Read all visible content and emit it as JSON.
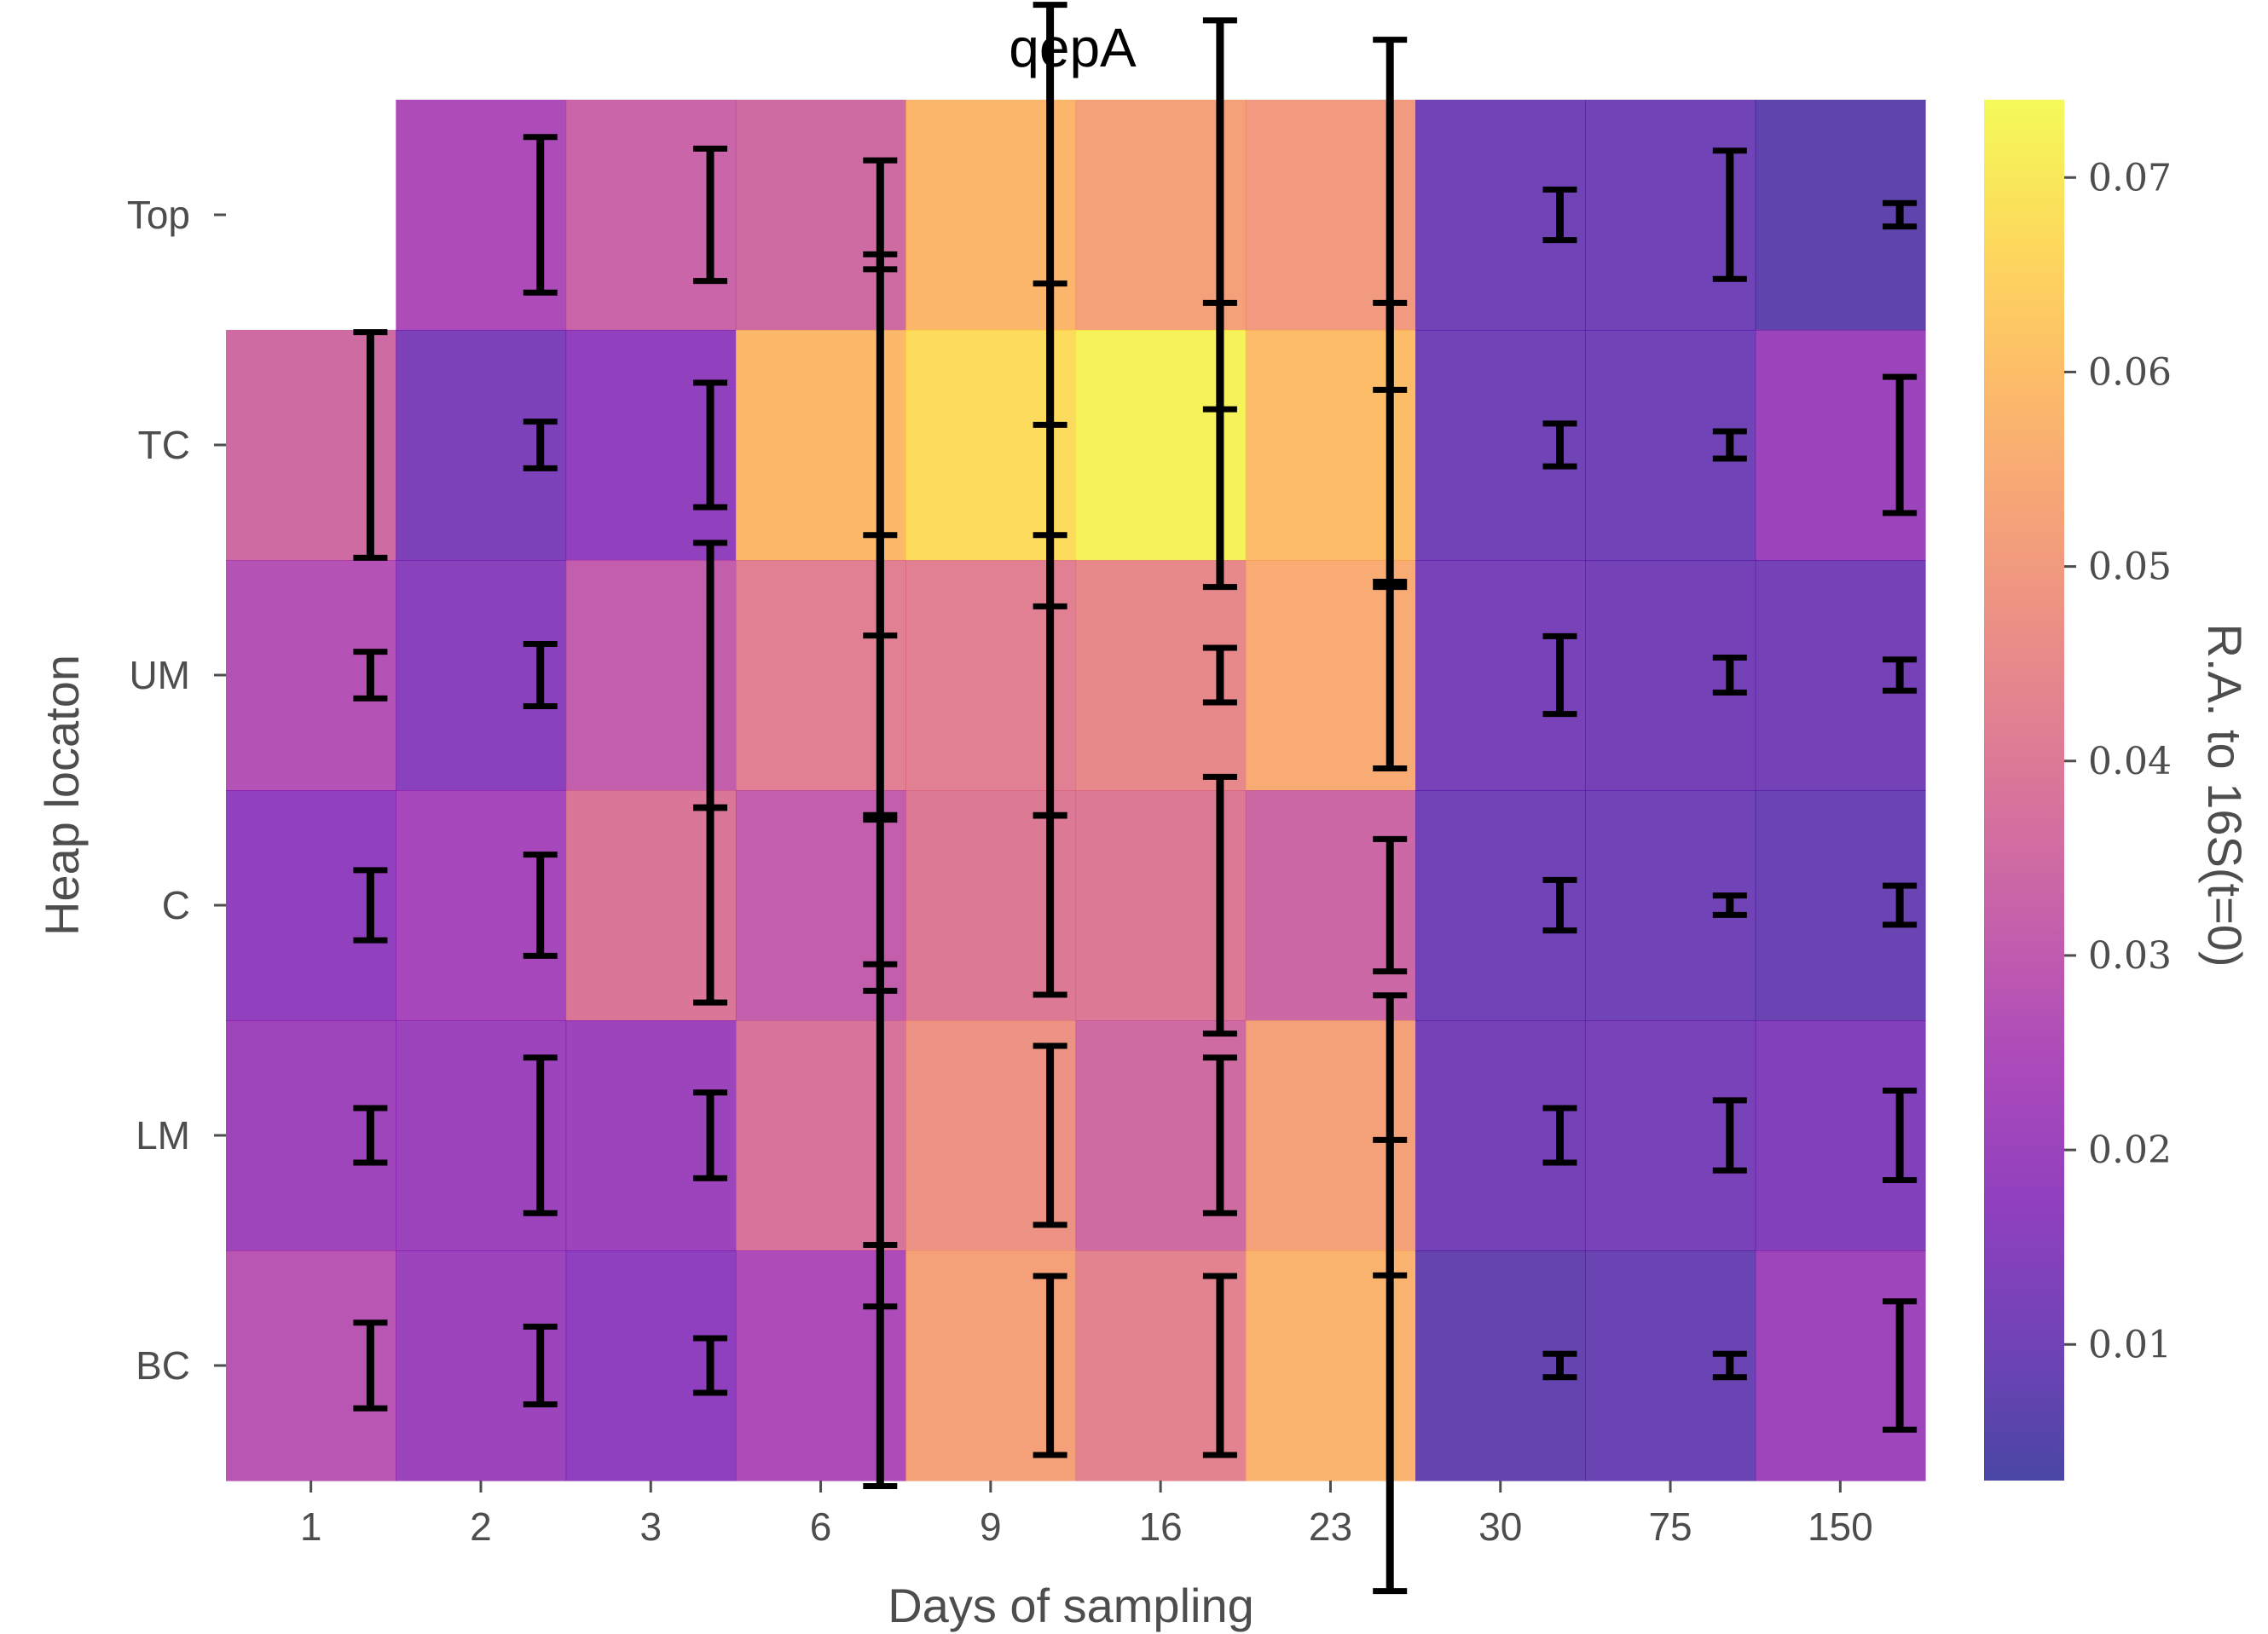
{
  "chart_data": {
    "type": "heatmap",
    "title": "qepA",
    "xlabel": "Days of sampling",
    "ylabel": "Heap locaton",
    "colorbar_label": "R.A. to 16S(t=0)",
    "colormap": "plasma",
    "colorbar_range": [
      0.003,
      0.074
    ],
    "colorbar_ticks": [
      0.01,
      0.02,
      0.03,
      0.04,
      0.05,
      0.06,
      0.07
    ],
    "colorbar_tick_labels": [
      "0.01",
      "0.02",
      "0.03",
      "0.04",
      "0.05",
      "0.06",
      "0.07"
    ],
    "x": [
      "1",
      "2",
      "3",
      "6",
      "9",
      "16",
      "23",
      "30",
      "75",
      "150"
    ],
    "y": [
      "Top",
      "TC",
      "UM",
      "C",
      "LM",
      "BC"
    ],
    "values": [
      [
        null,
        0.025,
        0.033,
        0.035,
        0.058,
        0.052,
        0.05,
        0.01,
        0.01,
        0.007
      ],
      [
        0.035,
        0.013,
        0.018,
        0.059,
        0.067,
        0.072,
        0.06,
        0.01,
        0.01,
        0.02
      ],
      [
        0.027,
        0.016,
        0.031,
        0.042,
        0.042,
        0.045,
        0.055,
        0.012,
        0.011,
        0.011
      ],
      [
        0.018,
        0.023,
        0.039,
        0.031,
        0.04,
        0.04,
        0.034,
        0.01,
        0.01,
        0.009
      ],
      [
        0.021,
        0.02,
        0.02,
        0.038,
        0.048,
        0.035,
        0.052,
        0.011,
        0.012,
        0.014
      ],
      [
        0.028,
        0.02,
        0.017,
        0.025,
        0.052,
        0.043,
        0.057,
        0.008,
        0.009,
        0.021
      ]
    ],
    "errors": [
      [
        null,
        0.004,
        0.0034,
        0.0028,
        0.0108,
        0.01,
        0.009,
        0.0013,
        0.0033,
        0.0006
      ],
      [
        0.0058,
        0.0012,
        0.0032,
        0.0098,
        0.0083,
        0.0073,
        0.0073,
        0.0011,
        0.0007,
        0.0035
      ],
      [
        0.0012,
        0.0016,
        0.0068,
        0.0072,
        0.0072,
        0.0014,
        0.0048,
        0.002,
        0.0009,
        0.0008
      ],
      [
        0.0018,
        0.0026,
        0.005,
        0.0044,
        0.0046,
        0.0066,
        0.0034,
        0.0013,
        0.0005,
        0.001
      ],
      [
        0.0014,
        0.004,
        0.0022,
        0.0088,
        0.0046,
        0.004,
        0.0072,
        0.0014,
        0.0018,
        0.0023
      ],
      [
        0.0022,
        0.002,
        0.0014,
        0.0062,
        0.0046,
        0.0046,
        0.0116,
        0.0006,
        0.0006,
        0.0033
      ]
    ],
    "grid": false
  }
}
